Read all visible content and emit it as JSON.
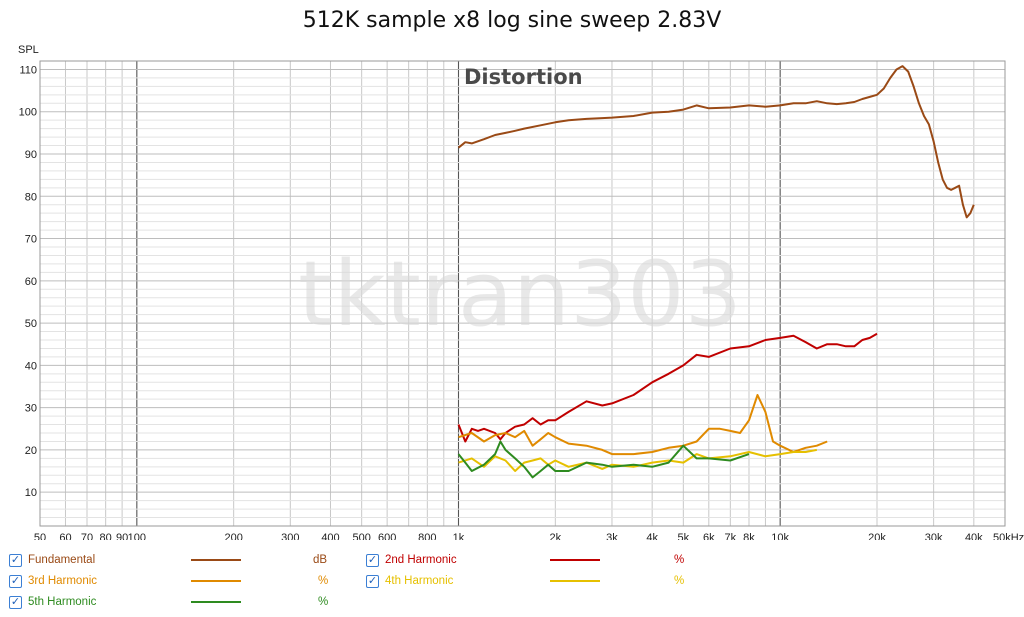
{
  "chart_data": {
    "type": "line",
    "title": "512K sample x8 log sine sweep 2.83V",
    "annotation": "Distortion",
    "watermark": "tktran303",
    "ylabel": "SPL",
    "xunit": "kHz",
    "x_scale": "log",
    "xlim": [
      50,
      50000
    ],
    "ylim": [
      2,
      112
    ],
    "grid": true,
    "y_ticks": [
      10,
      20,
      30,
      40,
      50,
      60,
      70,
      80,
      90,
      100,
      110
    ],
    "x_ticks": [
      {
        "v": 50,
        "label": "50"
      },
      {
        "v": 60,
        "label": "60"
      },
      {
        "v": 70,
        "label": "70"
      },
      {
        "v": 80,
        "label": "80"
      },
      {
        "v": 90,
        "label": "90"
      },
      {
        "v": 100,
        "label": "100"
      },
      {
        "v": 200,
        "label": "200"
      },
      {
        "v": 300,
        "label": "300"
      },
      {
        "v": 400,
        "label": "400"
      },
      {
        "v": 500,
        "label": "500"
      },
      {
        "v": 600,
        "label": "600"
      },
      {
        "v": 800,
        "label": "800"
      },
      {
        "v": 1000,
        "label": "1k"
      },
      {
        "v": 2000,
        "label": "2k"
      },
      {
        "v": 3000,
        "label": "3k"
      },
      {
        "v": 4000,
        "label": "4k"
      },
      {
        "v": 5000,
        "label": "5k"
      },
      {
        "v": 6000,
        "label": "6k"
      },
      {
        "v": 7000,
        "label": "7k"
      },
      {
        "v": 8000,
        "label": "8k"
      },
      {
        "v": 10000,
        "label": "10k"
      },
      {
        "v": 20000,
        "label": "20k"
      },
      {
        "v": 30000,
        "label": "30k"
      },
      {
        "v": 40000,
        "label": "40k"
      },
      {
        "v": 50000,
        "label": "50kHz"
      }
    ],
    "series": [
      {
        "name": "Fundamental",
        "unit": "dB",
        "color": "#9a4a16",
        "points": [
          [
            1000,
            91.5
          ],
          [
            1050,
            92.8
          ],
          [
            1100,
            92.5
          ],
          [
            1200,
            93.5
          ],
          [
            1300,
            94.5
          ],
          [
            1400,
            95
          ],
          [
            1500,
            95.5
          ],
          [
            1600,
            96
          ],
          [
            1800,
            96.8
          ],
          [
            2000,
            97.5
          ],
          [
            2200,
            98
          ],
          [
            2500,
            98.3
          ],
          [
            2800,
            98.5
          ],
          [
            3000,
            98.6
          ],
          [
            3500,
            99
          ],
          [
            4000,
            99.8
          ],
          [
            4500,
            100
          ],
          [
            5000,
            100.5
          ],
          [
            5500,
            101.5
          ],
          [
            6000,
            100.8
          ],
          [
            7000,
            101
          ],
          [
            8000,
            101.5
          ],
          [
            9000,
            101.2
          ],
          [
            10000,
            101.5
          ],
          [
            11000,
            102
          ],
          [
            12000,
            102
          ],
          [
            13000,
            102.5
          ],
          [
            14000,
            102
          ],
          [
            15000,
            101.8
          ],
          [
            16000,
            102
          ],
          [
            17000,
            102.3
          ],
          [
            18000,
            103
          ],
          [
            19000,
            103.5
          ],
          [
            20000,
            104
          ],
          [
            21000,
            105.5
          ],
          [
            22000,
            108
          ],
          [
            23000,
            110
          ],
          [
            24000,
            110.8
          ],
          [
            25000,
            109.5
          ],
          [
            26000,
            106
          ],
          [
            27000,
            102
          ],
          [
            28000,
            99
          ],
          [
            29000,
            97
          ],
          [
            30000,
            93
          ],
          [
            31000,
            88
          ],
          [
            32000,
            84
          ],
          [
            33000,
            82
          ],
          [
            34000,
            81.5
          ],
          [
            35000,
            82
          ],
          [
            36000,
            82.5
          ],
          [
            37000,
            78
          ],
          [
            38000,
            75
          ],
          [
            39000,
            76
          ],
          [
            40000,
            78
          ]
        ]
      },
      {
        "name": "2nd Harmonic",
        "unit": "%",
        "color": "#c00000",
        "points": [
          [
            1000,
            26
          ],
          [
            1050,
            22
          ],
          [
            1100,
            25
          ],
          [
            1150,
            24.5
          ],
          [
            1200,
            25
          ],
          [
            1300,
            24
          ],
          [
            1350,
            22.5
          ],
          [
            1400,
            24
          ],
          [
            1500,
            25.5
          ],
          [
            1600,
            26
          ],
          [
            1700,
            27.5
          ],
          [
            1800,
            26
          ],
          [
            1900,
            27
          ],
          [
            2000,
            27
          ],
          [
            2200,
            29
          ],
          [
            2500,
            31.5
          ],
          [
            2800,
            30.5
          ],
          [
            3000,
            31
          ],
          [
            3500,
            33
          ],
          [
            4000,
            36
          ],
          [
            4500,
            38
          ],
          [
            5000,
            40
          ],
          [
            5500,
            42.5
          ],
          [
            6000,
            42
          ],
          [
            7000,
            44
          ],
          [
            8000,
            44.5
          ],
          [
            9000,
            46
          ],
          [
            10000,
            46.5
          ],
          [
            11000,
            47
          ],
          [
            12000,
            45.5
          ],
          [
            13000,
            44
          ],
          [
            14000,
            45
          ],
          [
            15000,
            45
          ],
          [
            16000,
            44.5
          ],
          [
            17000,
            44.5
          ],
          [
            18000,
            46
          ],
          [
            19000,
            46.5
          ],
          [
            20000,
            47.5
          ]
        ]
      },
      {
        "name": "3rd Harmonic",
        "unit": "%",
        "color": "#e08a00",
        "points": [
          [
            1000,
            23
          ],
          [
            1100,
            24
          ],
          [
            1200,
            22
          ],
          [
            1300,
            23.5
          ],
          [
            1400,
            24
          ],
          [
            1500,
            23
          ],
          [
            1600,
            24.5
          ],
          [
            1700,
            21
          ],
          [
            1800,
            22.5
          ],
          [
            1900,
            24
          ],
          [
            2000,
            23
          ],
          [
            2200,
            21.5
          ],
          [
            2500,
            21
          ],
          [
            2800,
            20
          ],
          [
            3000,
            19
          ],
          [
            3500,
            19
          ],
          [
            4000,
            19.5
          ],
          [
            4500,
            20.5
          ],
          [
            5000,
            21
          ],
          [
            5500,
            22
          ],
          [
            6000,
            25
          ],
          [
            6500,
            25
          ],
          [
            7000,
            24.5
          ],
          [
            7500,
            24
          ],
          [
            8000,
            27
          ],
          [
            8500,
            33
          ],
          [
            9000,
            29
          ],
          [
            9500,
            22
          ],
          [
            10000,
            21
          ],
          [
            11000,
            19.5
          ],
          [
            12000,
            20.5
          ],
          [
            13000,
            21
          ],
          [
            14000,
            22
          ]
        ]
      },
      {
        "name": "4th Harmonic",
        "unit": "%",
        "color": "#e6c000",
        "points": [
          [
            1000,
            17
          ],
          [
            1100,
            18
          ],
          [
            1200,
            16
          ],
          [
            1300,
            18.5
          ],
          [
            1400,
            17.5
          ],
          [
            1500,
            15
          ],
          [
            1600,
            17
          ],
          [
            1700,
            17.5
          ],
          [
            1800,
            18
          ],
          [
            1900,
            16.5
          ],
          [
            2000,
            17.5
          ],
          [
            2200,
            16
          ],
          [
            2500,
            17
          ],
          [
            2800,
            15.5
          ],
          [
            3000,
            16.5
          ],
          [
            3500,
            16
          ],
          [
            4000,
            17
          ],
          [
            4500,
            17.5
          ],
          [
            5000,
            17
          ],
          [
            5500,
            19
          ],
          [
            6000,
            18
          ],
          [
            7000,
            18.5
          ],
          [
            8000,
            19.5
          ],
          [
            9000,
            18.5
          ],
          [
            10000,
            19
          ],
          [
            11000,
            19.5
          ],
          [
            12000,
            19.5
          ],
          [
            13000,
            20
          ]
        ]
      },
      {
        "name": "5th Harmonic",
        "unit": "%",
        "color": "#2e8b20",
        "points": [
          [
            1000,
            19
          ],
          [
            1050,
            17
          ],
          [
            1100,
            15
          ],
          [
            1200,
            16.5
          ],
          [
            1300,
            19
          ],
          [
            1350,
            22
          ],
          [
            1400,
            20
          ],
          [
            1500,
            18
          ],
          [
            1600,
            16
          ],
          [
            1700,
            13.5
          ],
          [
            1800,
            15
          ],
          [
            1900,
            16.5
          ],
          [
            2000,
            15
          ],
          [
            2200,
            15
          ],
          [
            2500,
            17
          ],
          [
            2800,
            16.5
          ],
          [
            3000,
            16
          ],
          [
            3500,
            16.5
          ],
          [
            4000,
            16
          ],
          [
            4500,
            17
          ],
          [
            5000,
            21
          ],
          [
            5500,
            18
          ],
          [
            6000,
            18
          ],
          [
            7000,
            17.5
          ],
          [
            8000,
            19
          ]
        ]
      }
    ]
  },
  "legend": [
    {
      "name": "Fundamental",
      "unit": "dB",
      "color": "#9a4a16",
      "checked": "✓"
    },
    {
      "name": "2nd Harmonic",
      "unit": "%",
      "color": "#c00000",
      "checked": "✓"
    },
    {
      "name": "3rd Harmonic",
      "unit": "%",
      "color": "#e08a00",
      "checked": "✓"
    },
    {
      "name": "4th Harmonic",
      "unit": "%",
      "color": "#e6c000",
      "checked": "✓"
    },
    {
      "name": "5th Harmonic",
      "unit": "%",
      "color": "#2e8b20",
      "checked": "✓"
    }
  ]
}
